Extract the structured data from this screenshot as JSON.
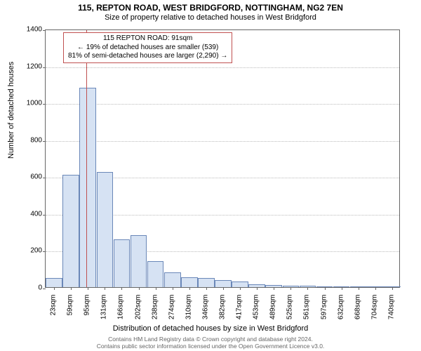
{
  "title_main": "115, REPTON ROAD, WEST BRIDGFORD, NOTTINGHAM, NG2 7EN",
  "title_sub": "Size of property relative to detached houses in West Bridgford",
  "ylabel": "Number of detached houses",
  "xlabel": "Distribution of detached houses by size in West Bridgford",
  "chart": {
    "type": "histogram",
    "ylim": [
      0,
      1400
    ],
    "ytick_step": 200,
    "xcategories": [
      "23sqm",
      "59sqm",
      "95sqm",
      "131sqm",
      "166sqm",
      "202sqm",
      "238sqm",
      "274sqm",
      "310sqm",
      "346sqm",
      "382sqm",
      "417sqm",
      "453sqm",
      "489sqm",
      "525sqm",
      "561sqm",
      "597sqm",
      "632sqm",
      "668sqm",
      "704sqm",
      "740sqm"
    ],
    "values": [
      50,
      610,
      1080,
      625,
      260,
      280,
      140,
      80,
      55,
      50,
      40,
      30,
      15,
      10,
      8,
      8,
      5,
      5,
      4,
      3,
      3
    ],
    "bar_fill": "#d6e2f3",
    "bar_stroke": "#6a87b8",
    "grid_color": "#bbbbbb",
    "axis_color": "#666666",
    "background": "#ffffff",
    "marker_value": 91,
    "marker_color": "#c05050",
    "tick_fontsize": 10,
    "label_fontsize": 11,
    "title_fontsize": 12
  },
  "annotation": {
    "line1": "115 REPTON ROAD: 91sqm",
    "line2": "← 19% of detached houses are smaller (539)",
    "line3": "81% of semi-detached houses are larger (2,290) →",
    "border_color": "#c05050"
  },
  "footer": {
    "line1": "Contains HM Land Registry data © Crown copyright and database right 2024.",
    "line2": "Contains public sector information licensed under the Open Government Licence v3.0."
  }
}
